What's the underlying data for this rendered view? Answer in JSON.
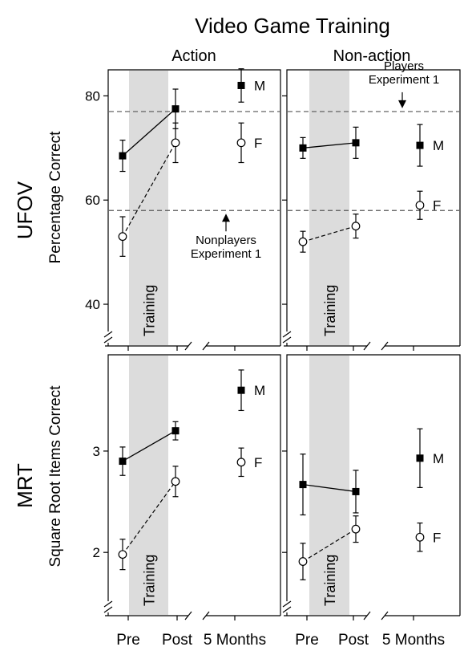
{
  "title": "Video Game Training",
  "columns": [
    "Action",
    "Non-action"
  ],
  "rows": [
    "UFOV",
    "MRT"
  ],
  "x_tick_labels": [
    "Pre",
    "Post",
    "5 Months"
  ],
  "band_label": "Training",
  "colors": {
    "band": "#dcdcdc",
    "reference_line": "#555555",
    "marker": "#000000"
  },
  "chart_data": [
    {
      "type": "line",
      "panel": "UFOV - Action",
      "row": "UFOV",
      "column": "Action",
      "ylabel": "Percentage Correct",
      "ylim": [
        36,
        85
      ],
      "yticks": [
        40,
        60,
        80
      ],
      "categories": [
        "Pre",
        "Post",
        "5 Months"
      ],
      "series": [
        {
          "name": "M",
          "marker": "filled-square",
          "values": [
            68.5,
            77.5,
            82
          ],
          "errors": [
            3,
            3.8,
            3.2
          ]
        },
        {
          "name": "F",
          "marker": "open-circle",
          "values": [
            53,
            71,
            71
          ],
          "errors": [
            3.8,
            3.8,
            3.8
          ]
        }
      ],
      "reference_lines": [
        {
          "y": 77,
          "label": ""
        },
        {
          "y": 58,
          "label": "Nonplayers\nExperiment 1"
        }
      ]
    },
    {
      "type": "line",
      "panel": "UFOV - Non-action",
      "row": "UFOV",
      "column": "Non-action",
      "ylabel": "",
      "ylim": [
        36,
        85
      ],
      "yticks": [
        40,
        60,
        80
      ],
      "categories": [
        "Pre",
        "Post",
        "5 Months"
      ],
      "series": [
        {
          "name": "M",
          "marker": "filled-square",
          "values": [
            70,
            71,
            70.5
          ],
          "errors": [
            2,
            3,
            4
          ]
        },
        {
          "name": "F",
          "marker": "open-circle",
          "values": [
            52,
            55,
            59
          ],
          "errors": [
            2,
            2.3,
            2.7
          ]
        }
      ],
      "reference_lines": [
        {
          "y": 77,
          "label": "Players\nExperiment 1"
        },
        {
          "y": 58,
          "label": ""
        }
      ]
    },
    {
      "type": "line",
      "panel": "MRT - Action",
      "row": "MRT",
      "column": "Action",
      "ylabel": "Square Root Items Correct",
      "ylim": [
        1.55,
        3.95
      ],
      "yticks": [
        2,
        3
      ],
      "categories": [
        "Pre",
        "Post",
        "5 Months"
      ],
      "series": [
        {
          "name": "M",
          "marker": "filled-square",
          "values": [
            2.9,
            3.2,
            3.6
          ],
          "errors": [
            0.14,
            0.09,
            0.2
          ]
        },
        {
          "name": "F",
          "marker": "open-circle",
          "values": [
            1.98,
            2.7,
            2.89
          ],
          "errors": [
            0.15,
            0.15,
            0.14
          ]
        }
      ]
    },
    {
      "type": "line",
      "panel": "MRT - Non-action",
      "row": "MRT",
      "column": "Non-action",
      "ylabel": "",
      "ylim": [
        1.55,
        3.95
      ],
      "yticks": [
        2,
        3
      ],
      "categories": [
        "Pre",
        "Post",
        "5 Months"
      ],
      "series": [
        {
          "name": "M",
          "marker": "filled-square",
          "values": [
            2.67,
            2.6,
            2.93
          ],
          "errors": [
            0.3,
            0.21,
            0.29
          ]
        },
        {
          "name": "F",
          "marker": "open-circle",
          "values": [
            1.91,
            2.23,
            2.15
          ],
          "errors": [
            0.18,
            0.13,
            0.14
          ]
        }
      ]
    }
  ]
}
